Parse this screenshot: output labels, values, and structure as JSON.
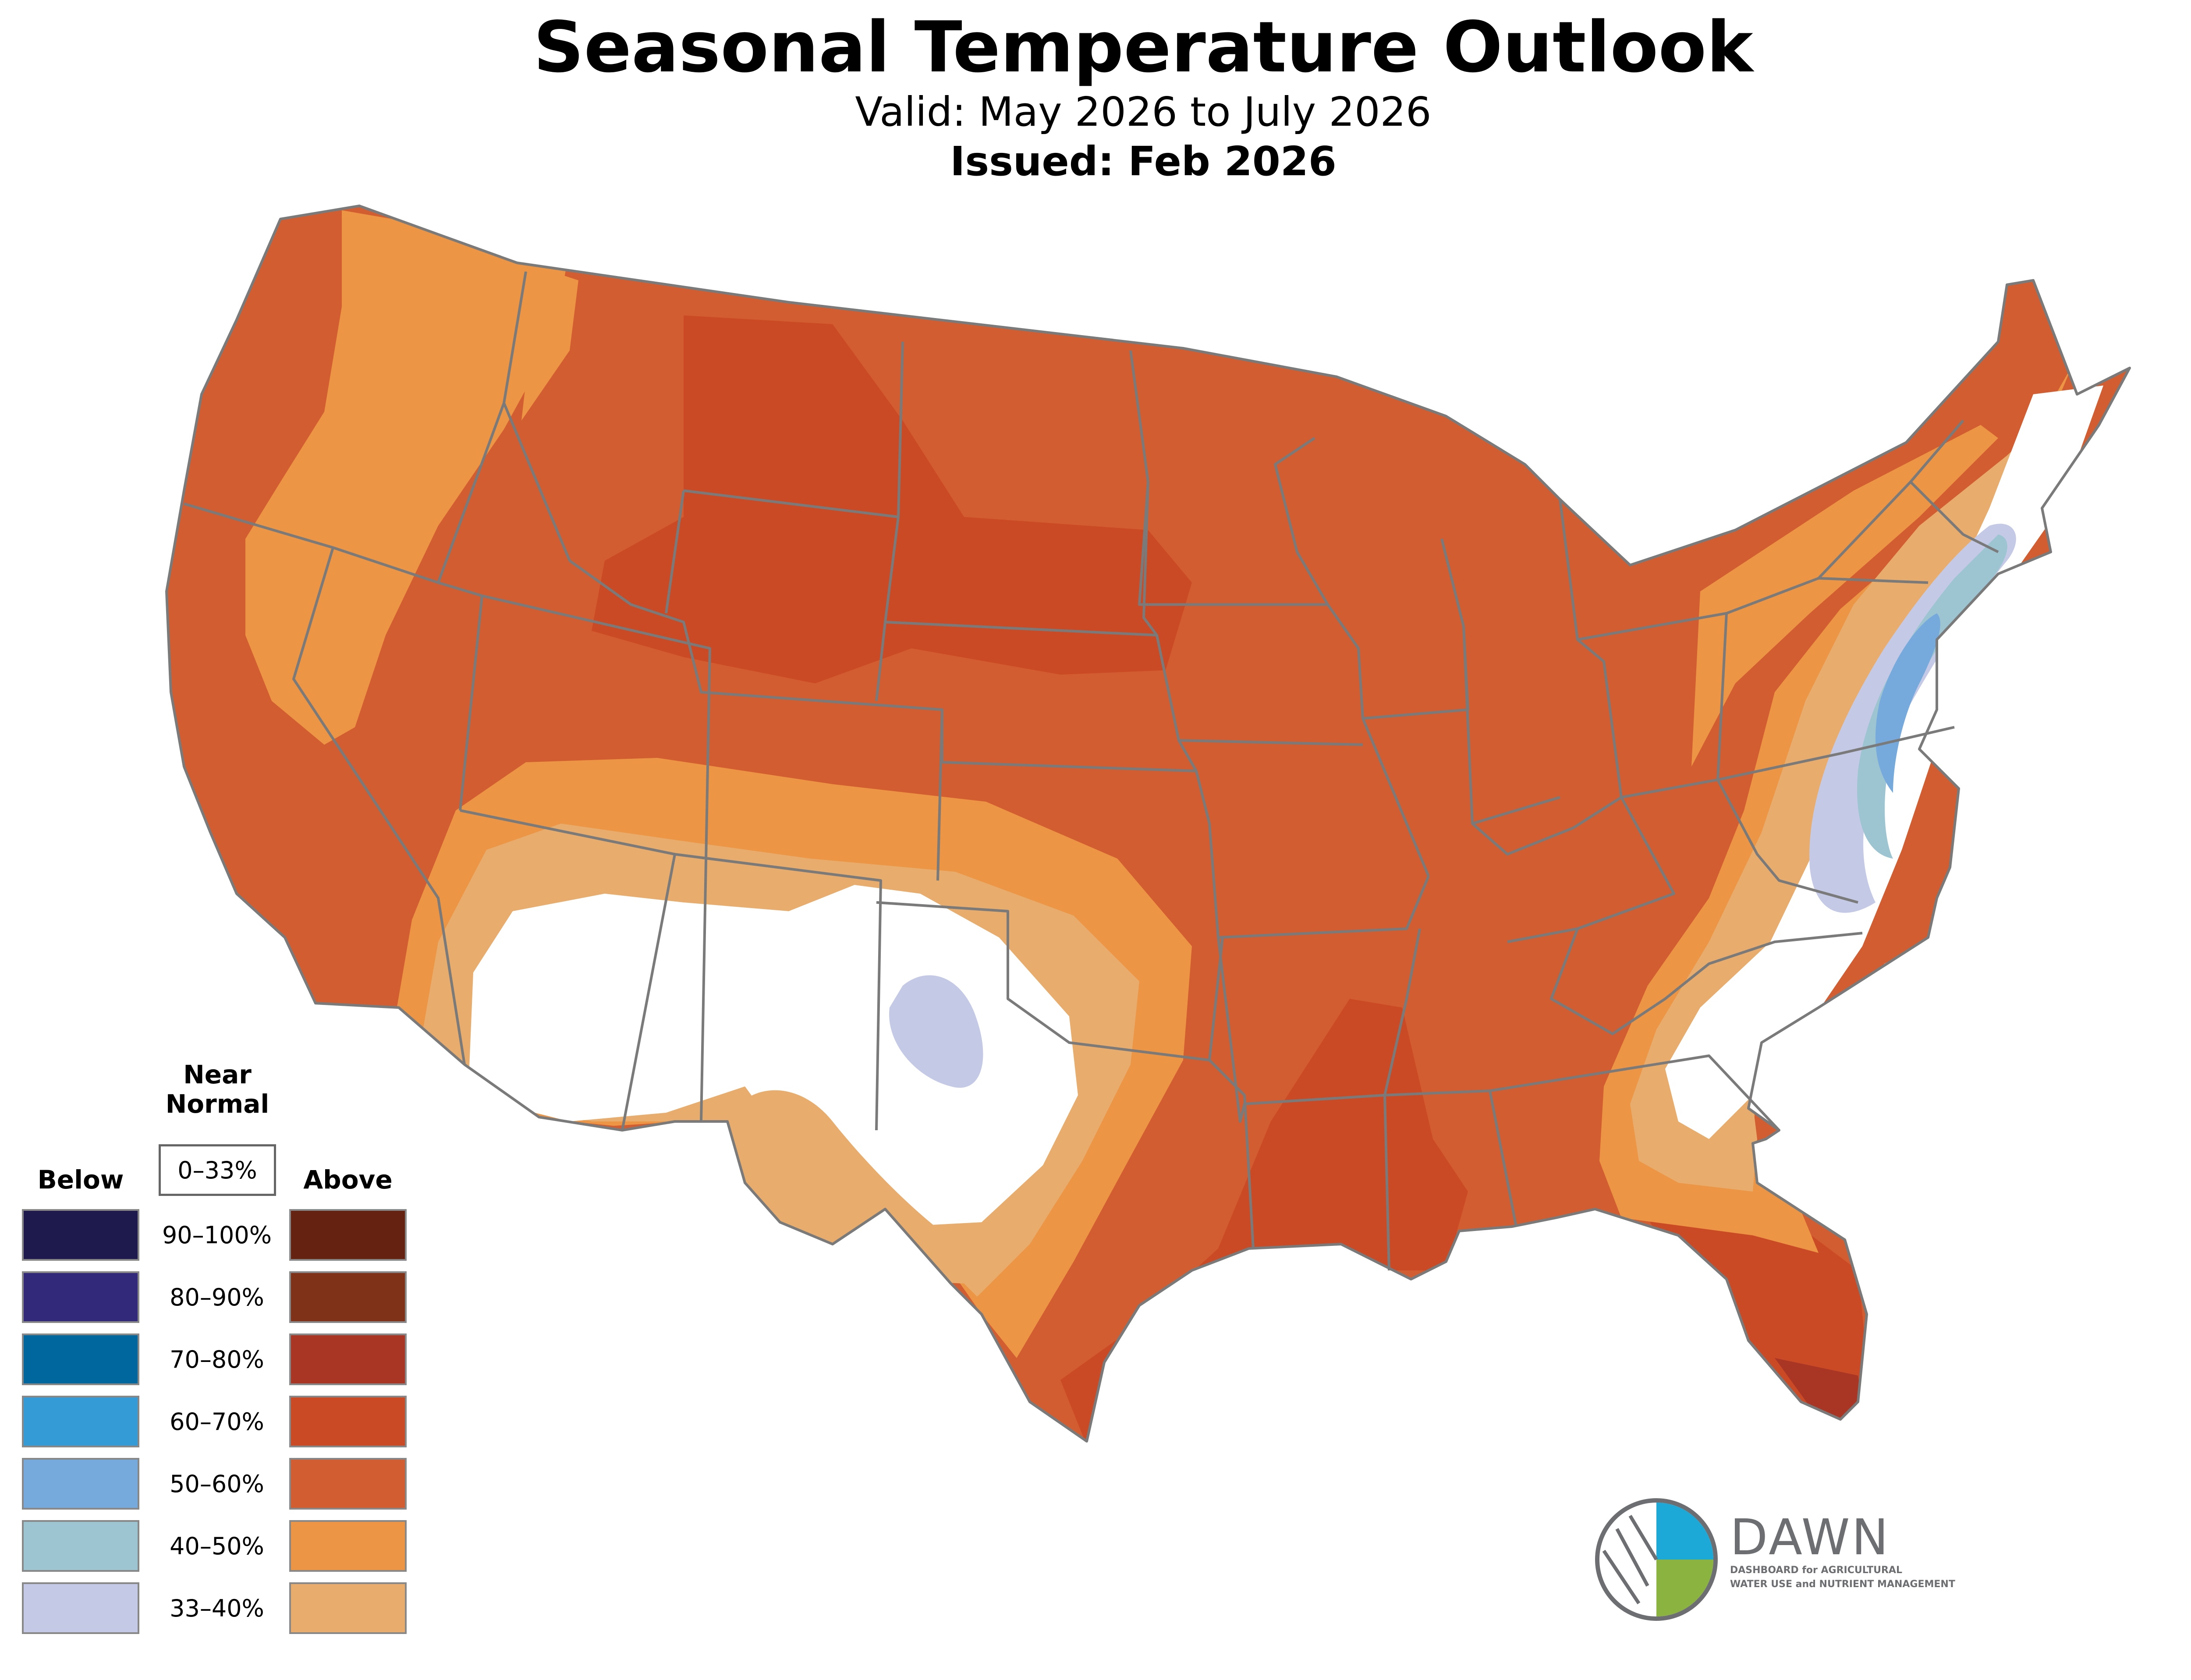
{
  "header": {
    "title": "Seasonal Temperature Outlook",
    "valid": "Valid: May 2026 to July 2026",
    "issued": "Issued: Feb 2026"
  },
  "legend": {
    "below_label": "Below",
    "near_normal_label_1": "Near",
    "near_normal_label_2": "Normal",
    "near_normal_range": "0–33%",
    "above_label": "Above",
    "rows": [
      {
        "range": "90–100%",
        "below_color": "#1f1a4e",
        "above_color": "#652211"
      },
      {
        "range": "80–90%",
        "below_color": "#33297a",
        "above_color": "#7f3218"
      },
      {
        "range": "70–80%",
        "below_color": "#00669e",
        "above_color": "#a93524"
      },
      {
        "range": "60–70%",
        "below_color": "#349bd7",
        "above_color": "#ca4a25"
      },
      {
        "range": "50–60%",
        "below_color": "#77aadc",
        "above_color": "#d25d30"
      },
      {
        "range": "40–50%",
        "below_color": "#9dc4d1",
        "above_color": "#ec9545"
      },
      {
        "range": "33–40%",
        "below_color": "#c4cae6",
        "above_color": "#e8ac6c"
      }
    ]
  },
  "logo": {
    "name": "DAWN",
    "line1": "DASHBOARD for AGRICULTURAL",
    "line2": "WATER USE and NUTRIENT MANAGEMENT",
    "blue": "#1ca9d7",
    "green": "#8ab43f",
    "gray": "#6d6e71"
  },
  "map": {
    "near_normal_color": "#ffffff",
    "boundary_color": "#7a7a7a"
  }
}
